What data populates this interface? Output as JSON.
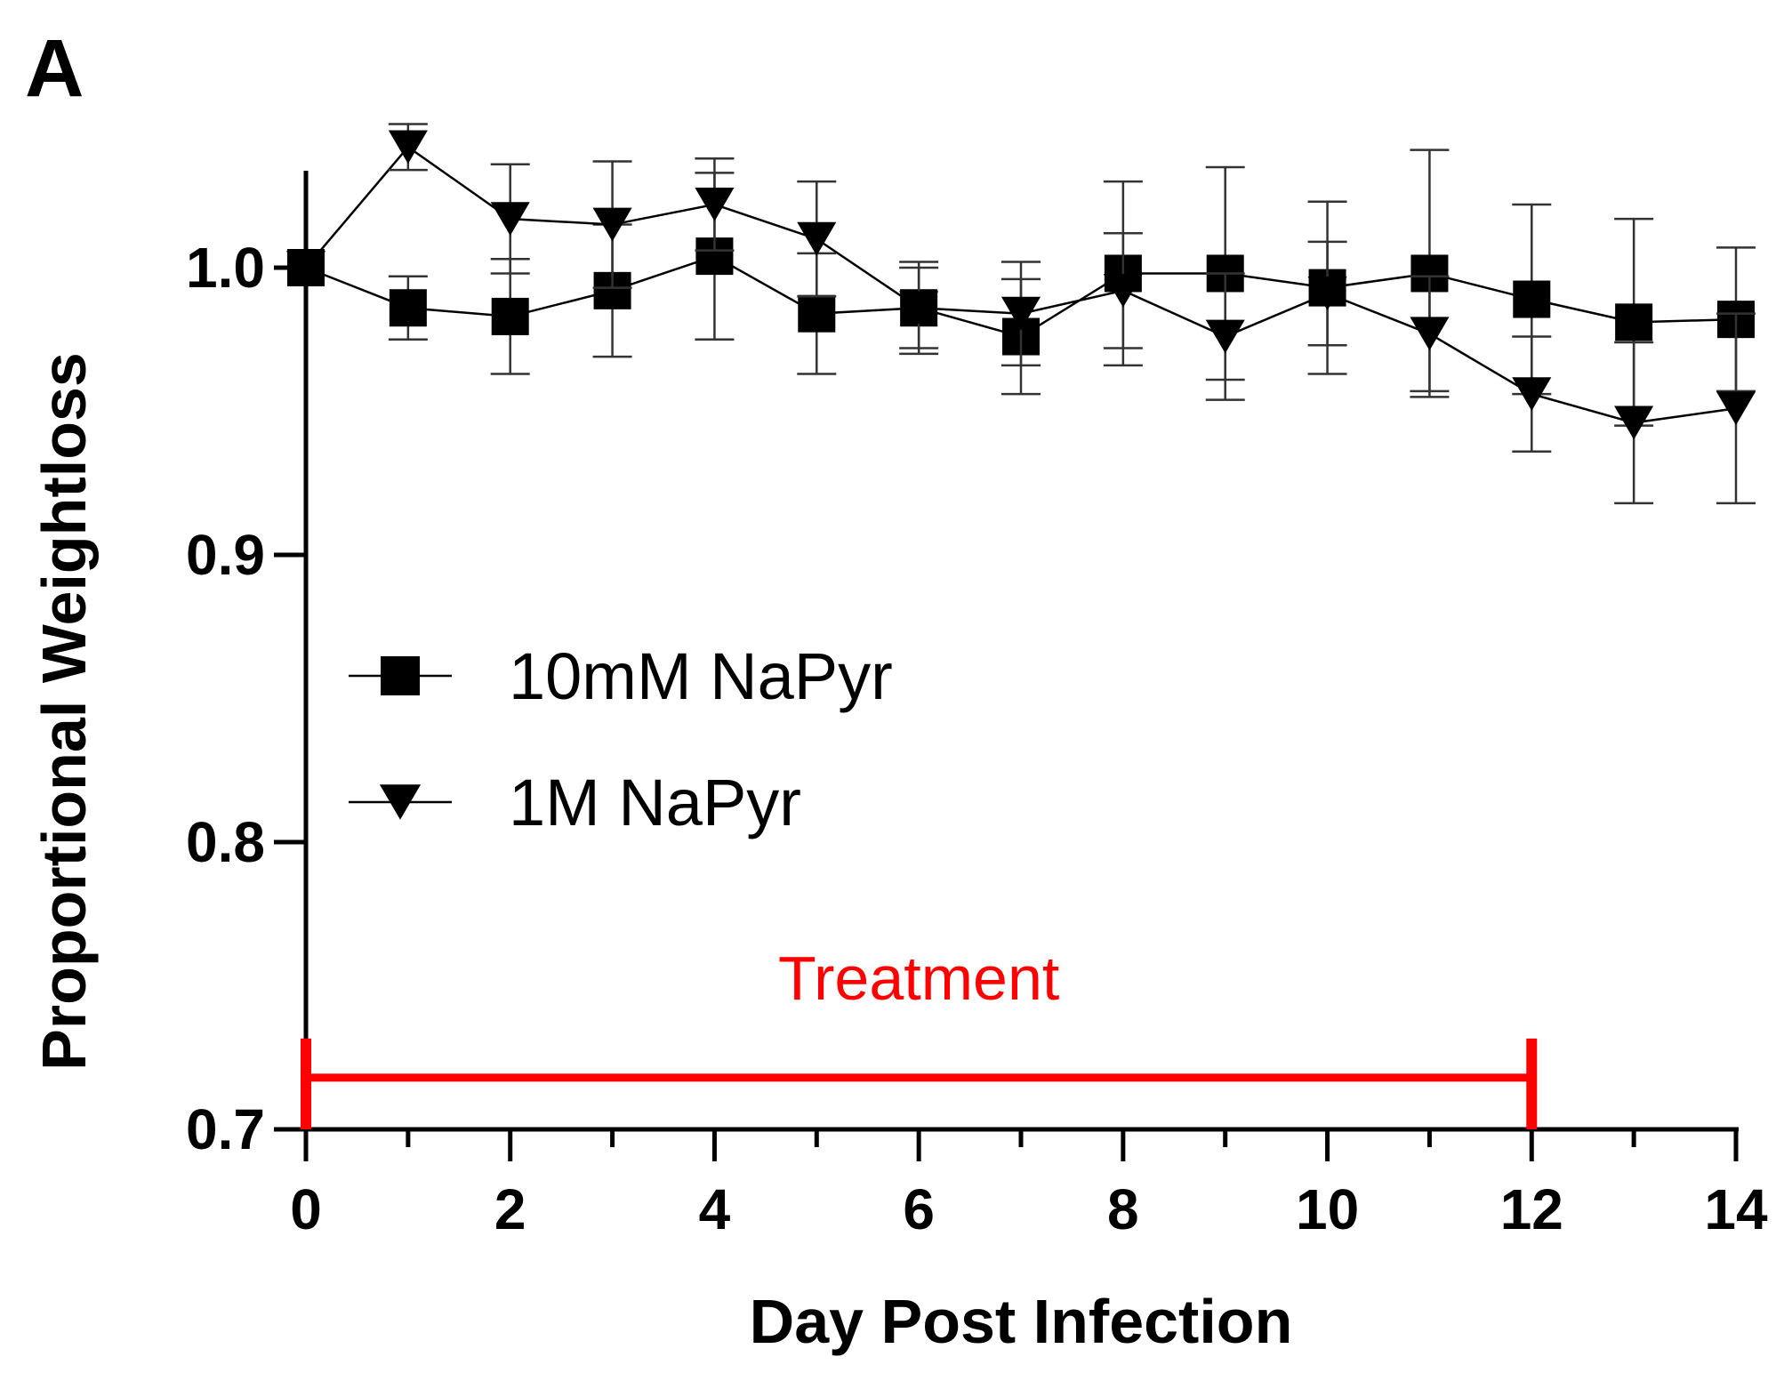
{
  "panel_label": "A",
  "chart_data": {
    "type": "line",
    "title": "",
    "xlabel": "Day Post Infection",
    "ylabel": "Proportional Weightloss",
    "xlim": [
      0,
      14
    ],
    "ylim": [
      0.7,
      1.05
    ],
    "x_ticks": [
      0,
      2,
      4,
      6,
      8,
      10,
      12,
      14
    ],
    "x_minor_ticks": [
      1,
      3,
      5,
      7,
      9,
      11,
      13
    ],
    "y_ticks": [
      0.7,
      0.8,
      0.9,
      1.0
    ],
    "y_tick_labels": [
      "0.7",
      "0.8",
      "0.9",
      "1.0"
    ],
    "grid": false,
    "legend_position": "middle-left",
    "series": [
      {
        "name": "10mM NaPyr",
        "marker": "square",
        "color": "#000000",
        "x": [
          0,
          1,
          2,
          3,
          4,
          5,
          6,
          7,
          8,
          9,
          10,
          11,
          12,
          13,
          14
        ],
        "values": [
          1.0,
          0.986,
          0.983,
          0.992,
          1.004,
          0.984,
          0.986,
          0.976,
          0.998,
          0.998,
          0.993,
          0.998,
          0.989,
          0.981,
          0.982
        ],
        "error": [
          0.0,
          0.011,
          0.02,
          0.023,
          0.029,
          0.021,
          0.016,
          0.02,
          0.032,
          0.037,
          0.03,
          0.043,
          0.033,
          0.036,
          0.025
        ]
      },
      {
        "name": "1M NaPyr",
        "marker": "triangle-down",
        "color": "#000000",
        "x": [
          0,
          1,
          2,
          3,
          4,
          5,
          6,
          7,
          8,
          9,
          10,
          11,
          12,
          13,
          14
        ],
        "values": [
          1.0,
          1.042,
          1.017,
          1.015,
          1.022,
          1.01,
          0.986,
          0.984,
          0.992,
          0.976,
          0.991,
          0.977,
          0.956,
          0.946,
          0.951
        ],
        "error": [
          0.0,
          0.008,
          0.019,
          0.022,
          0.016,
          0.02,
          0.014,
          0.018,
          0.02,
          0.022,
          0.018,
          0.02,
          0.02,
          0.028,
          0.033
        ]
      }
    ],
    "annotations": [
      {
        "type": "bracket",
        "label": "Treatment",
        "color": "#ff0000",
        "x_start": 0,
        "x_end": 12,
        "y": 0.718
      }
    ]
  }
}
